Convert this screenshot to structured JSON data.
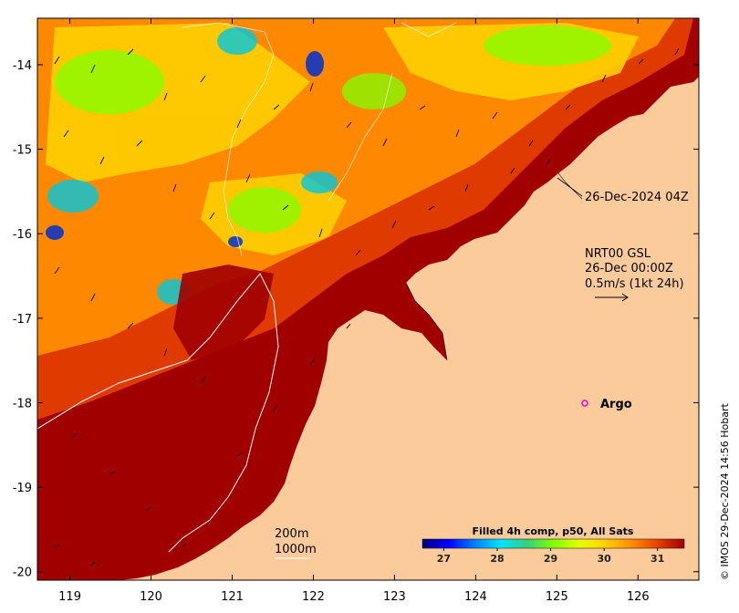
{
  "map": {
    "x_ticks": [
      119,
      120,
      121,
      122,
      123,
      124,
      125,
      126
    ],
    "y_ticks": [
      -14,
      -15,
      -16,
      -17,
      -18,
      -19,
      -20
    ],
    "lon_range": [
      118.6,
      126.75
    ],
    "lat_range": [
      -20.1,
      -13.45
    ],
    "land_color": "#fccb9c",
    "ocean_hot_color": "#a00000"
  },
  "annotations": {
    "image_time": "26-Dec-2024 04Z",
    "current_line1": "NRT00 GSL",
    "current_line2": "26-Dec 00:00Z",
    "current_line3": "0.5m/s (1kt 24h)",
    "isobath_200": "200m",
    "isobath_1000": "1000m",
    "argo": "Argo",
    "credit": "© IMOS 29-Dec-2024 14:56 Hobart"
  },
  "colorbar": {
    "title": "Filled 4h comp, p50, All Sats",
    "ticks": [
      27,
      28,
      29,
      30,
      31
    ],
    "range": [
      26.6,
      31.5
    ],
    "colors": [
      "#00007f",
      "#0000ff",
      "#0080ff",
      "#00e5ff",
      "#33d17a",
      "#7fff00",
      "#e6ff00",
      "#ffd000",
      "#ff8c00",
      "#e64000",
      "#a00000"
    ]
  }
}
